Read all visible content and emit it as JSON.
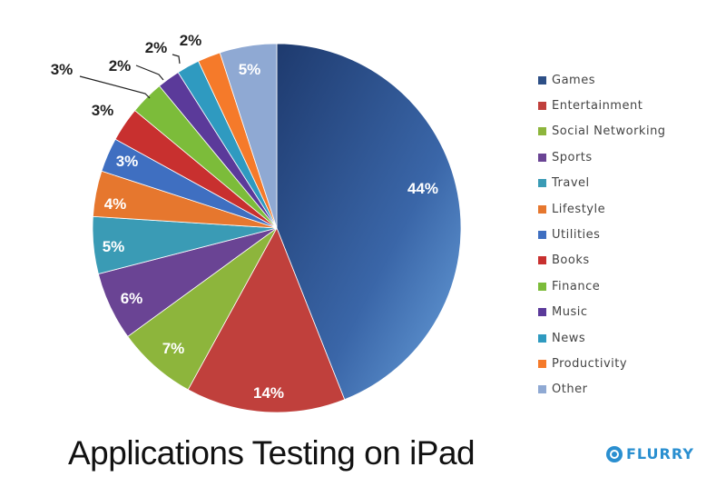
{
  "chart_data": {
    "type": "pie",
    "title": "Applications Testing on iPad",
    "categories": [
      "Games",
      "Entertainment",
      "Social Networking",
      "Sports",
      "Travel",
      "Lifestyle",
      "Utilities",
      "Books",
      "Finance",
      "Music",
      "News",
      "Productivity",
      "Other"
    ],
    "values": [
      44,
      14,
      7,
      6,
      5,
      4,
      3,
      3,
      3,
      2,
      2,
      2,
      5
    ],
    "labels": [
      "44%",
      "14%",
      "7%",
      "6%",
      "5%",
      "4%",
      "3%",
      "3%",
      "3%",
      "2%",
      "2%",
      "2%",
      "5%"
    ],
    "colors": [
      "#2d4f86",
      "#c0403c",
      "#8db53c",
      "#6a4494",
      "#3a9bb5",
      "#e6772e",
      "#3f6fc1",
      "#c8302f",
      "#7cbc3a",
      "#5b3a9a",
      "#2f9ac0",
      "#f57a2a",
      "#8fa9d3"
    ],
    "legend_placement": "right"
  },
  "brand": "FLURRY"
}
